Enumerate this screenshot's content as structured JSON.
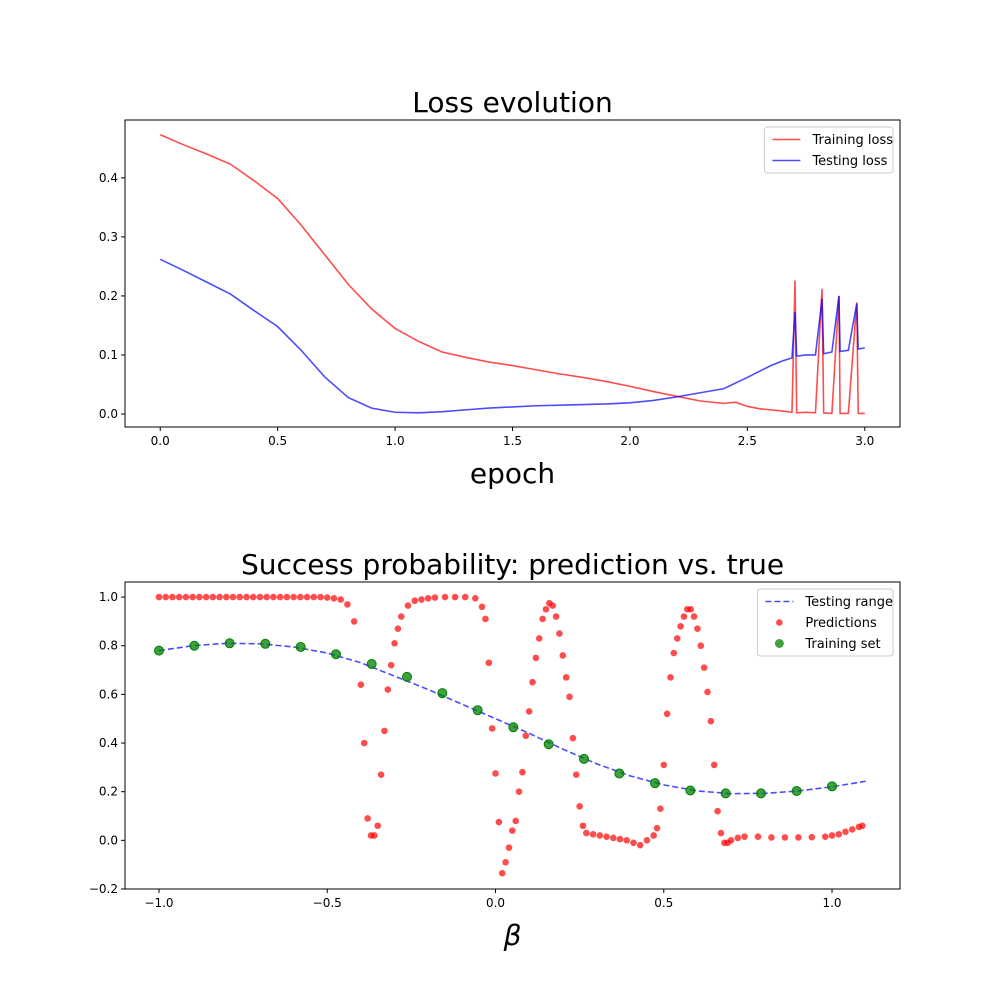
{
  "chart_data": [
    {
      "type": "line",
      "title": "Loss evolution",
      "xlabel": "epoch",
      "xlim": [
        -0.15,
        3.15
      ],
      "ylim": [
        -0.022,
        0.498
      ],
      "xticks": [
        {
          "value": 0,
          "label": "0.0"
        },
        {
          "value": 0.5,
          "label": "0.5"
        },
        {
          "value": 1,
          "label": "1.0"
        },
        {
          "value": 1.5,
          "label": "1.5"
        },
        {
          "value": 2,
          "label": "2.0"
        },
        {
          "value": 2.5,
          "label": "2.5"
        },
        {
          "value": 3,
          "label": "3.0"
        }
      ],
      "yticks": [
        {
          "value": 0,
          "label": "0.0"
        },
        {
          "value": 0.1,
          "label": "0.1"
        },
        {
          "value": 0.2,
          "label": "0.2"
        },
        {
          "value": 0.3,
          "label": "0.3"
        },
        {
          "value": 0.4,
          "label": "0.4"
        }
      ],
      "legend": "upper right",
      "series": [
        {
          "name": "Training loss",
          "type": "line",
          "color": "#ff0000",
          "alpha": 0.7,
          "x": [
            0,
            0.1,
            0.2,
            0.3,
            0.4,
            0.5,
            0.6,
            0.7,
            0.8,
            0.9,
            1.0,
            1.1,
            1.2,
            1.3,
            1.4,
            1.5,
            1.6,
            1.7,
            1.8,
            1.9,
            2.0,
            2.1,
            2.2,
            2.3,
            2.4,
            2.45,
            2.5,
            2.55,
            2.6,
            2.65,
            2.69,
            2.703,
            2.71,
            2.75,
            2.79,
            2.818,
            2.825,
            2.86,
            2.89,
            2.895,
            2.93,
            2.966,
            2.972,
            3.0
          ],
          "values": [
            0.473,
            0.456,
            0.44,
            0.423,
            0.395,
            0.365,
            0.32,
            0.27,
            0.22,
            0.178,
            0.145,
            0.123,
            0.105,
            0.096,
            0.088,
            0.082,
            0.075,
            0.068,
            0.062,
            0.055,
            0.047,
            0.038,
            0.03,
            0.022,
            0.018,
            0.02,
            0.013,
            0.009,
            0.007,
            0.005,
            0.003,
            0.226,
            0.002,
            0.003,
            0.002,
            0.212,
            0.002,
            0.001,
            0.2,
            0.001,
            0.001,
            0.189,
            0.001,
            0.001
          ]
        },
        {
          "name": "Testing loss",
          "type": "line",
          "color": "#0000ff",
          "alpha": 0.7,
          "x": [
            0,
            0.1,
            0.2,
            0.3,
            0.4,
            0.5,
            0.6,
            0.7,
            0.8,
            0.9,
            1.0,
            1.1,
            1.2,
            1.3,
            1.4,
            1.5,
            1.6,
            1.7,
            1.8,
            1.9,
            2.0,
            2.1,
            2.2,
            2.3,
            2.4,
            2.5,
            2.6,
            2.65,
            2.69,
            2.703,
            2.71,
            2.75,
            2.79,
            2.818,
            2.825,
            2.86,
            2.89,
            2.895,
            2.93,
            2.966,
            2.972,
            3.0
          ],
          "values": [
            0.262,
            0.243,
            0.223,
            0.203,
            0.175,
            0.148,
            0.108,
            0.063,
            0.028,
            0.01,
            0.003,
            0.002,
            0.004,
            0.007,
            0.01,
            0.012,
            0.014,
            0.015,
            0.016,
            0.017,
            0.019,
            0.023,
            0.029,
            0.036,
            0.043,
            0.062,
            0.082,
            0.09,
            0.095,
            0.173,
            0.098,
            0.1,
            0.1,
            0.195,
            0.102,
            0.105,
            0.2,
            0.106,
            0.108,
            0.187,
            0.11,
            0.112
          ]
        }
      ]
    },
    {
      "type": "scatter",
      "title": "Success probability: prediction vs. true",
      "xlabel": "β",
      "xlim": [
        -1.101,
        1.202
      ],
      "ylim": [
        -0.2,
        1.062
      ],
      "xticks": [
        {
          "value": -1,
          "label": "−1.0"
        },
        {
          "value": -0.5,
          "label": "−0.5"
        },
        {
          "value": 0,
          "label": "0.0"
        },
        {
          "value": 0.5,
          "label": "0.5"
        },
        {
          "value": 1,
          "label": "1.0"
        }
      ],
      "yticks": [
        {
          "value": -0.2,
          "label": "−0.2"
        },
        {
          "value": 0,
          "label": "0.0"
        },
        {
          "value": 0.2,
          "label": "0.2"
        },
        {
          "value": 0.4,
          "label": "0.4"
        },
        {
          "value": 0.6,
          "label": "0.6"
        },
        {
          "value": 0.8,
          "label": "0.8"
        },
        {
          "value": 1,
          "label": "1.0"
        }
      ],
      "legend": "upper right",
      "series": [
        {
          "name": "Testing range",
          "type": "line",
          "dash": true,
          "color": "#0000ff",
          "alpha": 0.7,
          "x": [
            -1.0,
            -0.9,
            -0.8,
            -0.7,
            -0.6,
            -0.5,
            -0.4,
            -0.3,
            -0.2,
            -0.1,
            0,
            0.1,
            0.2,
            0.3,
            0.4,
            0.5,
            0.6,
            0.7,
            0.8,
            0.9,
            1.0,
            1.1
          ],
          "values": [
            0.78,
            0.8,
            0.81,
            0.808,
            0.795,
            0.77,
            0.73,
            0.675,
            0.62,
            0.56,
            0.5,
            0.44,
            0.375,
            0.315,
            0.265,
            0.228,
            0.203,
            0.192,
            0.193,
            0.203,
            0.22,
            0.243
          ]
        },
        {
          "name": "Predictions",
          "type": "scatter",
          "color": "#ff0000",
          "alpha": 0.7,
          "x": [
            -1.0,
            -0.98,
            -0.96,
            -0.94,
            -0.92,
            -0.9,
            -0.88,
            -0.86,
            -0.84,
            -0.82,
            -0.8,
            -0.78,
            -0.76,
            -0.74,
            -0.72,
            -0.7,
            -0.68,
            -0.66,
            -0.64,
            -0.62,
            -0.6,
            -0.58,
            -0.56,
            -0.54,
            -0.52,
            -0.5,
            -0.48,
            -0.46,
            -0.44,
            -0.42,
            -0.4,
            -0.39,
            -0.38,
            -0.37,
            -0.36,
            -0.35,
            -0.34,
            -0.33,
            -0.32,
            -0.31,
            -0.3,
            -0.29,
            -0.28,
            -0.26,
            -0.24,
            -0.22,
            -0.2,
            -0.18,
            -0.15,
            -0.12,
            -0.09,
            -0.06,
            -0.04,
            -0.03,
            -0.02,
            -0.01,
            0,
            0.01,
            0.02,
            0.03,
            0.04,
            0.05,
            0.06,
            0.07,
            0.08,
            0.09,
            0.1,
            0.11,
            0.12,
            0.13,
            0.14,
            0.15,
            0.16,
            0.17,
            0.18,
            0.19,
            0.2,
            0.21,
            0.22,
            0.23,
            0.24,
            0.25,
            0.26,
            0.27,
            0.29,
            0.31,
            0.33,
            0.35,
            0.37,
            0.39,
            0.41,
            0.43,
            0.45,
            0.47,
            0.48,
            0.49,
            0.5,
            0.51,
            0.52,
            0.53,
            0.54,
            0.55,
            0.56,
            0.57,
            0.58,
            0.59,
            0.6,
            0.61,
            0.62,
            0.63,
            0.64,
            0.65,
            0.66,
            0.67,
            0.68,
            0.69,
            0.7,
            0.72,
            0.74,
            0.78,
            0.82,
            0.86,
            0.9,
            0.94,
            0.98,
            1.0,
            1.02,
            1.04,
            1.06,
            1.08,
            1.09
          ],
          "values": [
            1.0,
            1.0,
            1.0,
            1.0,
            1.0,
            1.0,
            1.0,
            1.0,
            1.0,
            1.0,
            1.0,
            1.0,
            1.0,
            1.0,
            1.0,
            1.0,
            1.0,
            1.0,
            1.0,
            1.0,
            1.0,
            1.0,
            1.0,
            1.0,
            1.0,
            0.998,
            0.995,
            0.99,
            0.97,
            0.9,
            0.64,
            0.4,
            0.09,
            0.02,
            0.02,
            0.06,
            0.27,
            0.45,
            0.62,
            0.72,
            0.81,
            0.87,
            0.92,
            0.965,
            0.985,
            0.99,
            0.995,
            0.998,
            1.0,
            1.0,
            1.0,
            0.995,
            0.96,
            0.91,
            0.73,
            0.46,
            0.275,
            0.075,
            -0.135,
            -0.09,
            -0.03,
            0.04,
            0.08,
            0.2,
            0.28,
            0.43,
            0.53,
            0.65,
            0.75,
            0.83,
            0.91,
            0.95,
            0.975,
            0.965,
            0.92,
            0.85,
            0.76,
            0.67,
            0.59,
            0.42,
            0.27,
            0.14,
            0.06,
            0.03,
            0.025,
            0.02,
            0.015,
            0.01,
            0.005,
            0.0,
            -0.01,
            -0.02,
            0.0,
            0.02,
            0.05,
            0.13,
            0.31,
            0.52,
            0.67,
            0.77,
            0.83,
            0.88,
            0.92,
            0.95,
            0.95,
            0.92,
            0.87,
            0.8,
            0.71,
            0.61,
            0.49,
            0.31,
            0.12,
            0.03,
            -0.01,
            -0.01,
            0.0,
            0.01,
            0.015,
            0.015,
            0.012,
            0.012,
            0.012,
            0.013,
            0.015,
            0.02,
            0.025,
            0.035,
            0.045,
            0.055,
            0.06
          ]
        },
        {
          "name": "Training set",
          "type": "scatter",
          "color": "#008000",
          "alpha": 0.75,
          "x": [
            -1.0,
            -0.895,
            -0.79,
            -0.684,
            -0.579,
            -0.474,
            -0.368,
            -0.263,
            -0.158,
            -0.053,
            0.053,
            0.158,
            0.263,
            0.368,
            0.474,
            0.579,
            0.684,
            0.789,
            0.895,
            1.0
          ],
          "values": [
            0.78,
            0.8,
            0.81,
            0.808,
            0.795,
            0.765,
            0.725,
            0.672,
            0.605,
            0.535,
            0.465,
            0.395,
            0.335,
            0.275,
            0.235,
            0.205,
            0.193,
            0.193,
            0.203,
            0.222
          ]
        }
      ]
    }
  ]
}
